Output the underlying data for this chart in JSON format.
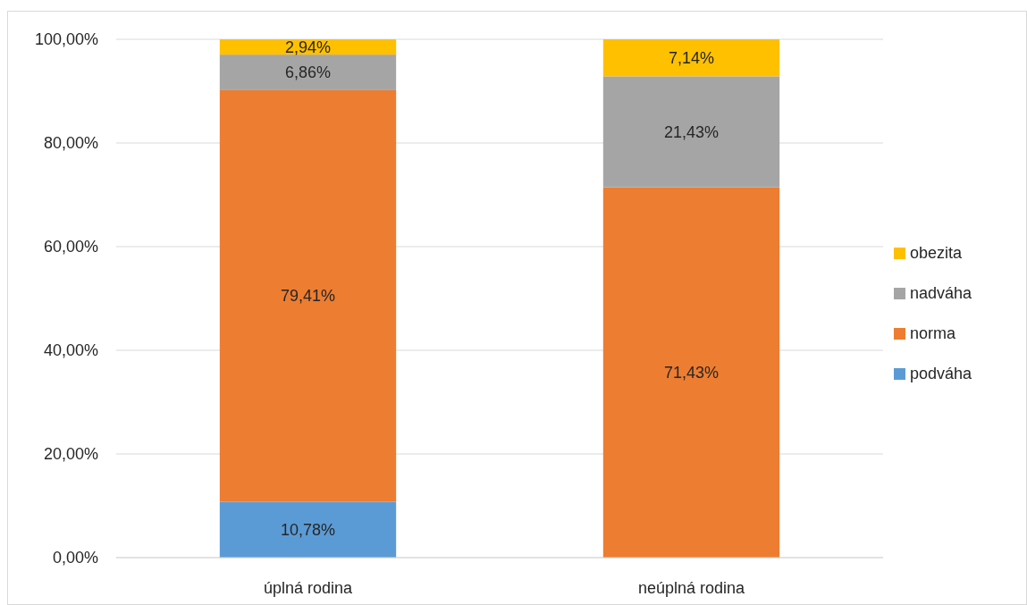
{
  "chart_data": {
    "type": "bar",
    "stacked": true,
    "categories": [
      "úplná rodina",
      "neúplná rodina"
    ],
    "series": [
      {
        "name": "podváha",
        "color": "#5b9bd5",
        "values": [
          10.78,
          0
        ],
        "value_labels": [
          "10,78%",
          null
        ]
      },
      {
        "name": "norma",
        "color": "#ed7d31",
        "values": [
          79.41,
          71.43
        ],
        "value_labels": [
          "79,41%",
          "71,43%"
        ]
      },
      {
        "name": "nadváha",
        "color": "#a5a5a5",
        "values": [
          6.86,
          21.43
        ],
        "value_labels": [
          "6,86%",
          "21,43%"
        ]
      },
      {
        "name": "obezita",
        "color": "#ffc000",
        "values": [
          2.94,
          7.14
        ],
        "value_labels": [
          "2,94%",
          "7,14%"
        ]
      }
    ],
    "ylim": [
      0,
      100
    ],
    "yticks": [
      {
        "value": 0,
        "label": "0,00%"
      },
      {
        "value": 20,
        "label": "20,00%"
      },
      {
        "value": 40,
        "label": "40,00%"
      },
      {
        "value": 60,
        "label": "60,00%"
      },
      {
        "value": 80,
        "label": "80,00%"
      },
      {
        "value": 100,
        "label": "100,00%"
      }
    ],
    "grid": "y",
    "legend": "right"
  }
}
